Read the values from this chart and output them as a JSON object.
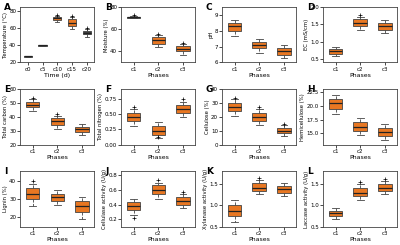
{
  "panels": [
    {
      "label": "A",
      "xlabel": "Time (d)",
      "ylabel": "Temperature (°C)",
      "xticks": [
        "c0",
        "c5",
        "c10",
        "c15",
        "c20"
      ],
      "colors": [
        "#3d3d3d",
        "#3d3d3d",
        "#E87722",
        "#E87722",
        "#3d3d3d"
      ],
      "boxes": [
        {
          "med": 27,
          "q1": 26.5,
          "q3": 27.5,
          "whislo": 26,
          "whishi": 28,
          "fliers": []
        },
        {
          "med": 40,
          "q1": 39.5,
          "q3": 40.5,
          "whislo": 39,
          "whishi": 41,
          "fliers": []
        },
        {
          "med": 72,
          "q1": 70,
          "q3": 73,
          "whislo": 68,
          "whishi": 75,
          "fliers": [
            76
          ]
        },
        {
          "med": 67,
          "q1": 63,
          "q3": 71,
          "whislo": 59,
          "whishi": 74,
          "fliers": [
            75
          ]
        },
        {
          "med": 55,
          "q1": 53,
          "q3": 57,
          "whislo": 50,
          "whishi": 59,
          "fliers": [
            60
          ]
        }
      ],
      "ylim": [
        20,
        85
      ]
    },
    {
      "label": "B",
      "xlabel": "Phases",
      "ylabel": "Moisture (%)",
      "xticks": [
        "c1",
        "c2",
        "c3"
      ],
      "colors": [
        "#3d3d3d",
        "#E87722",
        "#E87722"
      ],
      "boxes": [
        {
          "med": 71,
          "q1": 70.5,
          "q3": 71.5,
          "whislo": 70,
          "whishi": 72,
          "fliers": [
            73
          ]
        },
        {
          "med": 50,
          "q1": 47,
          "q3": 53,
          "whislo": 44,
          "whishi": 55,
          "fliers": [
            56
          ]
        },
        {
          "med": 42,
          "q1": 40,
          "q3": 45,
          "whislo": 37,
          "whishi": 47,
          "fliers": [
            48
          ]
        }
      ],
      "ylim": [
        30,
        80
      ]
    },
    {
      "label": "C",
      "xlabel": "Phases",
      "ylabel": "pH",
      "xticks": [
        "c1",
        "c2",
        "c3"
      ],
      "colors": [
        "#E87722",
        "#E87722",
        "#E87722"
      ],
      "boxes": [
        {
          "med": 8.3,
          "q1": 8.0,
          "q3": 8.5,
          "whislo": 7.7,
          "whishi": 8.7,
          "fliers": []
        },
        {
          "med": 7.1,
          "q1": 6.9,
          "q3": 7.3,
          "whislo": 6.6,
          "whishi": 7.5,
          "fliers": []
        },
        {
          "med": 6.7,
          "q1": 6.5,
          "q3": 6.9,
          "whislo": 6.3,
          "whishi": 7.1,
          "fliers": []
        }
      ],
      "ylim": [
        6.0,
        9.5
      ]
    },
    {
      "label": "D",
      "xlabel": "Phases",
      "ylabel": "EC (mS/cm)",
      "xticks": [
        "c1",
        "c2",
        "c3"
      ],
      "colors": [
        "#E87722",
        "#E87722",
        "#E87722"
      ],
      "boxes": [
        {
          "med": 0.72,
          "q1": 0.65,
          "q3": 0.78,
          "whislo": 0.58,
          "whishi": 0.85,
          "fliers": []
        },
        {
          "med": 1.55,
          "q1": 1.45,
          "q3": 1.65,
          "whislo": 1.35,
          "whishi": 1.72,
          "fliers": [
            1.77
          ]
        },
        {
          "med": 1.45,
          "q1": 1.35,
          "q3": 1.55,
          "whislo": 1.25,
          "whishi": 1.62,
          "fliers": []
        }
      ],
      "ylim": [
        0.4,
        2.0
      ]
    },
    {
      "label": "E",
      "xlabel": "Phases",
      "ylabel": "Total carbon (%)",
      "xticks": [
        "c1",
        "c2",
        "c3"
      ],
      "colors": [
        "#E87722",
        "#E87722",
        "#E87722"
      ],
      "boxes": [
        {
          "med": 49,
          "q1": 47,
          "q3": 51,
          "whislo": 44,
          "whishi": 53,
          "fliers": [
            54
          ]
        },
        {
          "med": 37,
          "q1": 34,
          "q3": 39,
          "whislo": 31,
          "whishi": 41,
          "fliers": [
            42
          ]
        },
        {
          "med": 31,
          "q1": 29,
          "q3": 33,
          "whislo": 27,
          "whishi": 35,
          "fliers": []
        }
      ],
      "ylim": [
        20,
        60
      ]
    },
    {
      "label": "F",
      "xlabel": "Phases",
      "ylabel": "Total nitrogen (%)",
      "xticks": [
        "c1",
        "c2",
        "c3"
      ],
      "colors": [
        "#E87722",
        "#E87722",
        "#E87722"
      ],
      "boxes": [
        {
          "med": 0.45,
          "q1": 0.38,
          "q3": 0.52,
          "whislo": 0.3,
          "whishi": 0.58,
          "fliers": [
            0.62
          ]
        },
        {
          "med": 0.22,
          "q1": 0.16,
          "q3": 0.3,
          "whislo": 0.1,
          "whishi": 0.36,
          "fliers": [
            0.12
          ]
        },
        {
          "med": 0.58,
          "q1": 0.52,
          "q3": 0.65,
          "whislo": 0.45,
          "whishi": 0.7,
          "fliers": [
            0.74
          ]
        }
      ],
      "ylim": [
        0.0,
        0.9
      ]
    },
    {
      "label": "G",
      "xlabel": "Phases",
      "ylabel": "Cellulose (%)",
      "xticks": [
        "c1",
        "c2",
        "c3"
      ],
      "colors": [
        "#E87722",
        "#E87722",
        "#E87722"
      ],
      "boxes": [
        {
          "med": 27,
          "q1": 24,
          "q3": 30,
          "whislo": 21,
          "whishi": 33,
          "fliers": [
            34
          ]
        },
        {
          "med": 20,
          "q1": 17,
          "q3": 23,
          "whislo": 14,
          "whishi": 26,
          "fliers": [
            27
          ]
        },
        {
          "med": 10,
          "q1": 8,
          "q3": 12,
          "whislo": 6,
          "whishi": 14,
          "fliers": [
            15
          ]
        }
      ],
      "ylim": [
        0,
        40
      ]
    },
    {
      "label": "H",
      "xlabel": "Phases",
      "ylabel": "Hemicellulose (%)",
      "xticks": [
        "c1",
        "c2",
        "c3"
      ],
      "colors": [
        "#E87722",
        "#E87722",
        "#E87722"
      ],
      "boxes": [
        {
          "med": 20.5,
          "q1": 19.5,
          "q3": 21.2,
          "whislo": 18.5,
          "whishi": 22,
          "fliers": []
        },
        {
          "med": 16.2,
          "q1": 15.5,
          "q3": 17.0,
          "whislo": 14.8,
          "whishi": 17.8,
          "fliers": []
        },
        {
          "med": 15.2,
          "q1": 14.5,
          "q3": 16.0,
          "whislo": 13.8,
          "whishi": 16.8,
          "fliers": []
        }
      ],
      "ylim": [
        13,
        23
      ]
    },
    {
      "label": "I",
      "xlabel": "Phases",
      "ylabel": "Lignin (%)",
      "xticks": [
        "c1",
        "c2",
        "c3"
      ],
      "colors": [
        "#E87722",
        "#E87722",
        "#E87722"
      ],
      "boxes": [
        {
          "med": 33,
          "q1": 30,
          "q3": 36,
          "whislo": 26,
          "whishi": 38,
          "fliers": [
            40
          ]
        },
        {
          "med": 31,
          "q1": 29,
          "q3": 33,
          "whislo": 27,
          "whishi": 35,
          "fliers": []
        },
        {
          "med": 26,
          "q1": 23,
          "q3": 29,
          "whislo": 19,
          "whishi": 31,
          "fliers": []
        }
      ],
      "ylim": [
        15,
        45
      ]
    },
    {
      "label": "J",
      "xlabel": "Phases",
      "ylabel": "Cellulase activity (U/g)",
      "xticks": [
        "c1",
        "c2",
        "c3"
      ],
      "colors": [
        "#E87722",
        "#E87722",
        "#E87722"
      ],
      "boxes": [
        {
          "med": 0.38,
          "q1": 0.32,
          "q3": 0.43,
          "whislo": 0.26,
          "whishi": 0.48,
          "fliers": [
            0.22
          ]
        },
        {
          "med": 0.6,
          "q1": 0.54,
          "q3": 0.66,
          "whislo": 0.48,
          "whishi": 0.7,
          "fliers": [
            0.73
          ]
        },
        {
          "med": 0.45,
          "q1": 0.4,
          "q3": 0.5,
          "whislo": 0.35,
          "whishi": 0.55,
          "fliers": [
            0.57
          ]
        }
      ],
      "ylim": [
        0.1,
        0.85
      ]
    },
    {
      "label": "K",
      "xlabel": "Phases",
      "ylabel": "Xylanase activity (U/g)",
      "xticks": [
        "c1",
        "c2",
        "c3"
      ],
      "colors": [
        "#E87722",
        "#E87722",
        "#E87722"
      ],
      "boxes": [
        {
          "med": 0.88,
          "q1": 0.75,
          "q3": 1.02,
          "whislo": 0.62,
          "whishi": 1.12,
          "fliers": []
        },
        {
          "med": 1.42,
          "q1": 1.35,
          "q3": 1.52,
          "whislo": 1.28,
          "whishi": 1.6,
          "fliers": [
            1.65
          ]
        },
        {
          "med": 1.38,
          "q1": 1.3,
          "q3": 1.46,
          "whislo": 1.22,
          "whishi": 1.54,
          "fliers": []
        }
      ],
      "ylim": [
        0.5,
        1.8
      ]
    },
    {
      "label": "L",
      "xlabel": "Phases",
      "ylabel": "Laccase activity (U/g)",
      "xticks": [
        "c1",
        "c2",
        "c3"
      ],
      "colors": [
        "#E87722",
        "#E87722",
        "#E87722"
      ],
      "boxes": [
        {
          "med": 0.82,
          "q1": 0.75,
          "q3": 0.88,
          "whislo": 0.68,
          "whishi": 0.95,
          "fliers": []
        },
        {
          "med": 1.3,
          "q1": 1.22,
          "q3": 1.4,
          "whislo": 1.12,
          "whishi": 1.5,
          "fliers": [
            1.55
          ]
        },
        {
          "med": 1.42,
          "q1": 1.35,
          "q3": 1.5,
          "whislo": 1.28,
          "whishi": 1.58,
          "fliers": [
            1.62
          ]
        }
      ],
      "ylim": [
        0.5,
        1.8
      ]
    }
  ],
  "box_color": "#E87722",
  "box_edge_color": "#444444",
  "whisker_color": "#444444",
  "median_color": "#222222",
  "flier_color": "#444444",
  "bg_color": "#ffffff",
  "panel_bg": "#ffffff"
}
